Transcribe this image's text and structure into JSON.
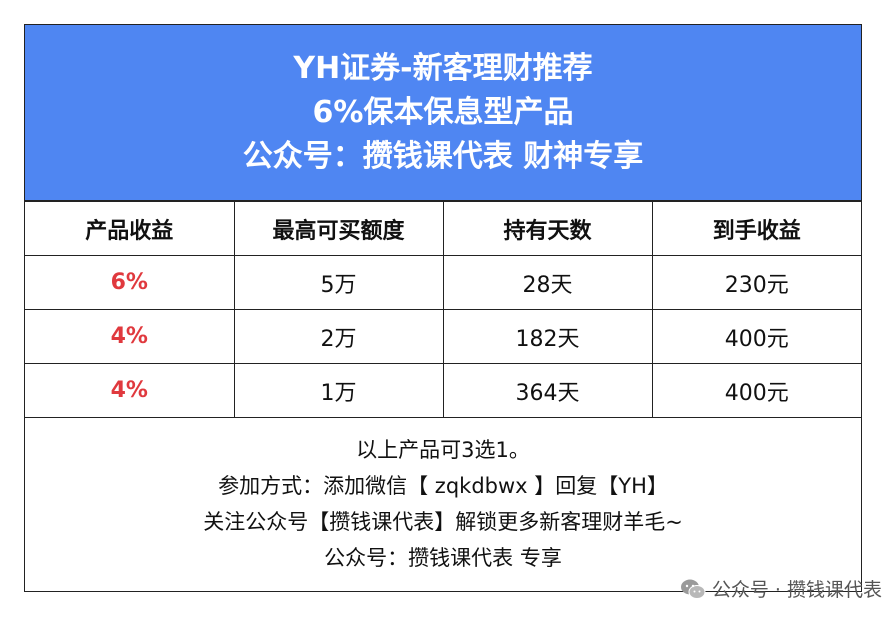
{
  "banner": {
    "lines": [
      "YH证券-新客理财推荐",
      "6%保本保息型产品",
      "公众号：攒钱课代表 财神专享"
    ]
  },
  "table": {
    "headers": [
      "产品收益",
      "最高可买额度",
      "持有天数",
      "到手收益"
    ],
    "rows": [
      [
        "6%",
        "5万",
        "28天",
        "230元"
      ],
      [
        "4%",
        "2万",
        "182天",
        "400元"
      ],
      [
        "4%",
        "1万",
        "364天",
        "400元"
      ]
    ]
  },
  "notes": [
    "以上产品可3选1。",
    "参加方式：添加微信【 zqkdbwx 】回复【YH】",
    "关注公众号【攒钱课代表】解锁更多新客理财羊毛~",
    "公众号：攒钱课代表 专享"
  ],
  "watermark": {
    "text": "公众号 · 攒钱课代表",
    "icon": "wechat-icon"
  },
  "colors": {
    "banner": "#4f86f2",
    "rate": "#e0393e",
    "border": "#222222"
  }
}
